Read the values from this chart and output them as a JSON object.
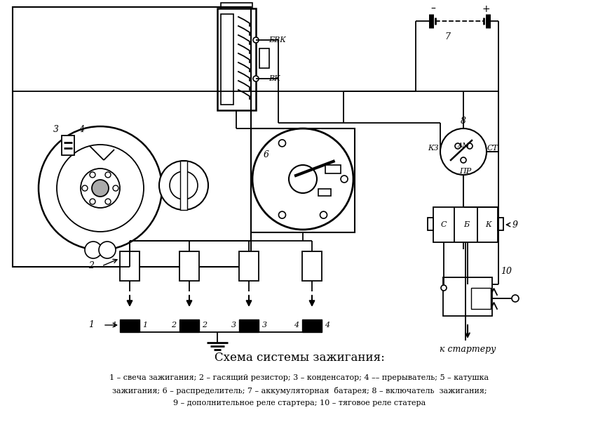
{
  "title": "Схема системы зажигания:",
  "legend_line1": "1 – свеча зажигания; 2 – гасящий резистор; 3 – конденсатор; 4 –– прерыватель; 5 – катушка",
  "legend_line2": "зажигания; 6 – распределитель; 7 – аккумуляторная  батарея; 8 – включатель  зажигания;",
  "legend_line3": "9 – дополнительное реле стартера; 10 – тяговое реле статера",
  "bg_color": "#ffffff",
  "lc": "#000000"
}
